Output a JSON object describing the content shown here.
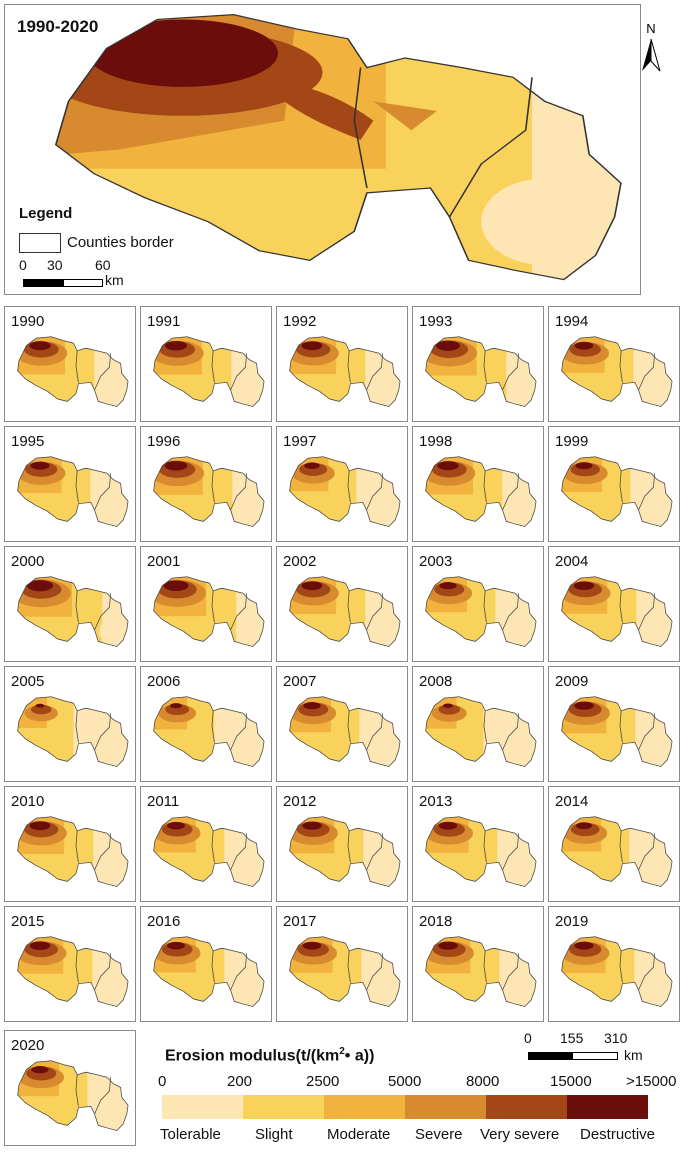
{
  "overview": {
    "title": "1990-2020",
    "north_label": "N",
    "legend_title": "Legend",
    "border_label": "Counties border",
    "scale": {
      "ticks": [
        "0",
        "30",
        "60"
      ],
      "unit": "km"
    }
  },
  "panels": [
    {
      "year": "1990",
      "severity": 0.72
    },
    {
      "year": "1991",
      "severity": 0.74
    },
    {
      "year": "1992",
      "severity": 0.7
    },
    {
      "year": "1993",
      "severity": 0.8
    },
    {
      "year": "1994",
      "severity": 0.62
    },
    {
      "year": "1995",
      "severity": 0.64
    },
    {
      "year": "1996",
      "severity": 0.76
    },
    {
      "year": "1997",
      "severity": 0.52
    },
    {
      "year": "1998",
      "severity": 0.72
    },
    {
      "year": "1999",
      "severity": 0.56
    },
    {
      "year": "2000",
      "severity": 0.88
    },
    {
      "year": "2001",
      "severity": 0.84
    },
    {
      "year": "2002",
      "severity": 0.7
    },
    {
      "year": "2003",
      "severity": 0.58
    },
    {
      "year": "2004",
      "severity": 0.68
    },
    {
      "year": "2005",
      "severity": 0.3
    },
    {
      "year": "2006",
      "severity": 0.4
    },
    {
      "year": "2007",
      "severity": 0.58
    },
    {
      "year": "2008",
      "severity": 0.34
    },
    {
      "year": "2009",
      "severity": 0.66
    },
    {
      "year": "2010",
      "severity": 0.7
    },
    {
      "year": "2011",
      "severity": 0.6
    },
    {
      "year": "2012",
      "severity": 0.66
    },
    {
      "year": "2013",
      "severity": 0.62
    },
    {
      "year": "2014",
      "severity": 0.54
    },
    {
      "year": "2015",
      "severity": 0.68
    },
    {
      "year": "2016",
      "severity": 0.6
    },
    {
      "year": "2017",
      "severity": 0.62
    },
    {
      "year": "2018",
      "severity": 0.66
    },
    {
      "year": "2019",
      "severity": 0.64
    },
    {
      "year": "2020",
      "severity": 0.58
    }
  ],
  "panel_scale": {
    "ticks": [
      "0",
      "155",
      "310"
    ],
    "unit": "km"
  },
  "erosion_legend": {
    "title": "Erosion modulus(t/(km",
    "title_sup": "2",
    "title_tail": "• a))",
    "breaks": [
      "0",
      "200",
      "2500",
      "5000",
      "8000",
      "15000",
      ">15000"
    ],
    "classes": [
      {
        "name": "Tolerable",
        "color": "#fde6b4"
      },
      {
        "name": "Slight",
        "color": "#f9d25c"
      },
      {
        "name": "Moderate",
        "color": "#f2b33e"
      },
      {
        "name": "Severe",
        "color": "#d78a2e"
      },
      {
        "name": "Very severe",
        "color": "#a34717"
      },
      {
        "name": "Destructive",
        "color": "#6b0d0b"
      }
    ]
  }
}
